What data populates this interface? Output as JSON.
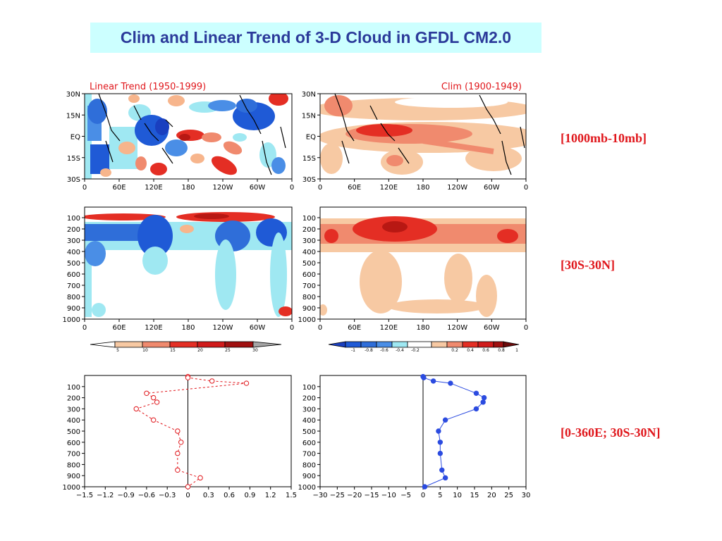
{
  "title": "Clim and Linear Trend of 3-D Cloud in GFDL CM2.0",
  "side_labels": [
    "[1000mb-10mb]",
    "[30S-30N]",
    "[0-360E; 30S-30N]"
  ],
  "colors": {
    "title_bg": "#ccffff",
    "title_text": "#2b3a9a",
    "label_red": "#e0171c",
    "profile_trend": "#e0171c",
    "profile_clim": "#2b4be0"
  },
  "chart_data": [
    {
      "type": "heatmap",
      "id": "map-trend",
      "title": "Linear Trend (1950-1999)",
      "xticks": [
        "0",
        "60E",
        "120E",
        "180",
        "120W",
        "60W",
        "0"
      ],
      "yticks": [
        "30N",
        "15N",
        "EQ",
        "15S",
        "30S"
      ],
      "colorbar": [
        "5",
        "10",
        "15",
        "20",
        "25",
        "30"
      ],
      "description_values": "lat-lon cloud trend, vertically integrated 1000mb-10mb"
    },
    {
      "type": "heatmap",
      "id": "map-clim",
      "title": "Clim (1900-1949)",
      "xticks": [
        "0",
        "60E",
        "120E",
        "180",
        "120W",
        "60W",
        "0"
      ],
      "yticks": [
        "30N",
        "15N",
        "EQ",
        "15S",
        "30S"
      ]
    },
    {
      "type": "heatmap",
      "id": "xsec-trend",
      "xticks": [
        "0",
        "60E",
        "120E",
        "180",
        "120W",
        "60W",
        "0"
      ],
      "yticks": [
        "100",
        "200",
        "300",
        "400",
        "500",
        "600",
        "700",
        "800",
        "900",
        "1000"
      ],
      "colorbar": [
        "-1",
        "-0.8",
        "-0.6",
        "-0.4",
        "-0.2",
        "0.2",
        "0.4",
        "0.6",
        "0.8",
        "1"
      ]
    },
    {
      "type": "heatmap",
      "id": "xsec-clim",
      "xticks": [
        "0",
        "60E",
        "120E",
        "180",
        "120W",
        "60W",
        "0"
      ],
      "yticks": [
        "100",
        "200",
        "300",
        "400",
        "500",
        "600",
        "700",
        "800",
        "900",
        "1000"
      ]
    },
    {
      "type": "line",
      "id": "profile-trend",
      "xlim": [
        -1.5,
        1.5
      ],
      "ylim": [
        1000,
        0
      ],
      "xticks": [
        "-1.5",
        "-1.2",
        "-0.9",
        "-0.6",
        "-0.3",
        "0",
        "0.3",
        "0.6",
        "0.9",
        "1.2",
        "1.5"
      ],
      "yticks": [
        "100",
        "200",
        "300",
        "400",
        "500",
        "600",
        "700",
        "800",
        "900",
        "1000"
      ],
      "x": [
        0.0,
        0.0,
        0.35,
        0.85,
        -0.6,
        -0.5,
        -0.45,
        -0.75,
        -0.5,
        -0.15,
        -0.1,
        -0.15,
        -0.15,
        0.18,
        0.0
      ],
      "y": [
        10,
        20,
        50,
        70,
        160,
        200,
        240,
        300,
        400,
        500,
        600,
        700,
        850,
        920,
        1000
      ]
    },
    {
      "type": "line",
      "id": "profile-clim",
      "xlim": [
        -30,
        30
      ],
      "ylim": [
        1000,
        0
      ],
      "xticks": [
        "-30",
        "-25",
        "-20",
        "-15",
        "-10",
        "-5",
        "0",
        "5",
        "10",
        "15",
        "20",
        "25",
        "30"
      ],
      "yticks": [
        "100",
        "200",
        "300",
        "400",
        "500",
        "600",
        "700",
        "800",
        "900",
        "1000"
      ],
      "x": [
        0,
        0.2,
        3,
        8,
        15.5,
        17.8,
        17.5,
        15.5,
        6.5,
        4.5,
        5,
        5,
        5.5,
        6.5,
        0.5
      ],
      "y": [
        10,
        20,
        50,
        70,
        160,
        200,
        240,
        300,
        400,
        500,
        600,
        700,
        850,
        920,
        1000
      ]
    }
  ]
}
